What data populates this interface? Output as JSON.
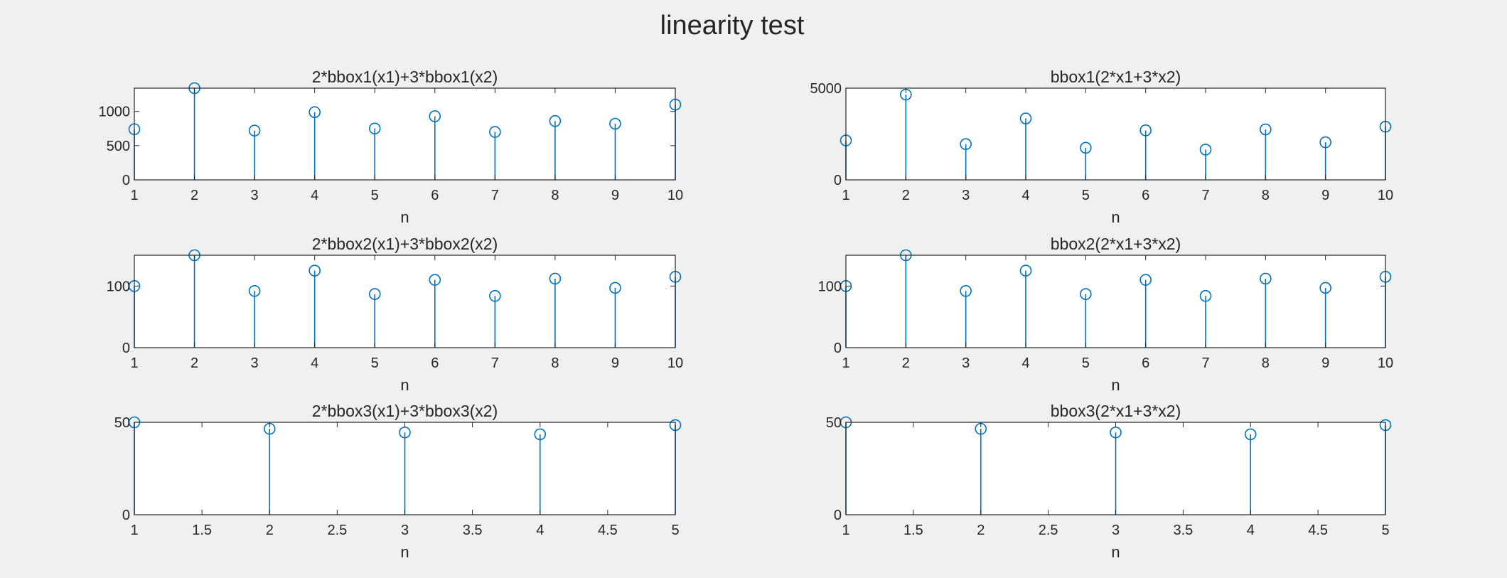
{
  "figure": {
    "title": "linearity test"
  },
  "colors": {
    "stem": "#0072BD",
    "axes": "#262626",
    "plot_bg": "#ffffff",
    "figure_bg": "#f0f0f0"
  },
  "chart_data": [
    {
      "type": "stem",
      "title": "2*bbox1(x1)+3*bbox1(x2)",
      "xlabel": "n",
      "ylabel": "",
      "x": [
        1,
        2,
        3,
        4,
        5,
        6,
        7,
        8,
        9,
        10
      ],
      "y": [
        740,
        1340,
        720,
        990,
        750,
        930,
        700,
        860,
        820,
        1100
      ],
      "xlim": [
        1,
        10
      ],
      "ylim": [
        0,
        1340
      ],
      "xticks": [
        1,
        2,
        3,
        4,
        5,
        6,
        7,
        8,
        9,
        10
      ],
      "yticks": [
        0,
        500,
        1000
      ],
      "grid": false
    },
    {
      "type": "stem",
      "title": "bbox1(2*x1+3*x2)",
      "xlabel": "n",
      "ylabel": "",
      "x": [
        1,
        2,
        3,
        4,
        5,
        6,
        7,
        8,
        9,
        10
      ],
      "y": [
        2150,
        4650,
        1950,
        3350,
        1750,
        2700,
        1650,
        2750,
        2050,
        2900
      ],
      "xlim": [
        1,
        10
      ],
      "ylim": [
        0,
        5000
      ],
      "xticks": [
        1,
        2,
        3,
        4,
        5,
        6,
        7,
        8,
        9,
        10
      ],
      "yticks": [
        0,
        5000
      ],
      "grid": false
    },
    {
      "type": "stem",
      "title": "2*bbox2(x1)+3*bbox2(x2)",
      "xlabel": "n",
      "ylabel": "",
      "x": [
        1,
        2,
        3,
        4,
        5,
        6,
        7,
        8,
        9,
        10
      ],
      "y": [
        100,
        150,
        92,
        125,
        87,
        110,
        84,
        112,
        97,
        115
      ],
      "xlim": [
        1,
        10
      ],
      "ylim": [
        0,
        150
      ],
      "xticks": [
        1,
        2,
        3,
        4,
        5,
        6,
        7,
        8,
        9,
        10
      ],
      "yticks": [
        0,
        100
      ],
      "grid": false
    },
    {
      "type": "stem",
      "title": "bbox2(2*x1+3*x2)",
      "xlabel": "n",
      "ylabel": "",
      "x": [
        1,
        2,
        3,
        4,
        5,
        6,
        7,
        8,
        9,
        10
      ],
      "y": [
        100,
        150,
        92,
        125,
        87,
        110,
        84,
        112,
        97,
        115
      ],
      "xlim": [
        1,
        10
      ],
      "ylim": [
        0,
        150
      ],
      "xticks": [
        1,
        2,
        3,
        4,
        5,
        6,
        7,
        8,
        9,
        10
      ],
      "yticks": [
        0,
        100
      ],
      "grid": false
    },
    {
      "type": "stem",
      "title": "2*bbox3(x1)+3*bbox3(x2)",
      "xlabel": "n",
      "ylabel": "",
      "x": [
        1,
        2,
        3,
        4,
        5
      ],
      "y": [
        50,
        46.5,
        44.5,
        43.5,
        48.5
      ],
      "xlim": [
        1,
        5
      ],
      "ylim": [
        0,
        50
      ],
      "xticks": [
        1,
        1.5,
        2,
        2.5,
        3,
        3.5,
        4,
        4.5,
        5
      ],
      "yticks": [
        0,
        50
      ],
      "grid": false
    },
    {
      "type": "stem",
      "title": "bbox3(2*x1+3*x2)",
      "xlabel": "n",
      "ylabel": "",
      "x": [
        1,
        2,
        3,
        4,
        5
      ],
      "y": [
        50,
        46.5,
        44.5,
        43.5,
        48.5
      ],
      "xlim": [
        1,
        5
      ],
      "ylim": [
        0,
        50
      ],
      "xticks": [
        1,
        1.5,
        2,
        2.5,
        3,
        3.5,
        4,
        4.5,
        5
      ],
      "yticks": [
        0,
        50
      ],
      "grid": false
    }
  ]
}
